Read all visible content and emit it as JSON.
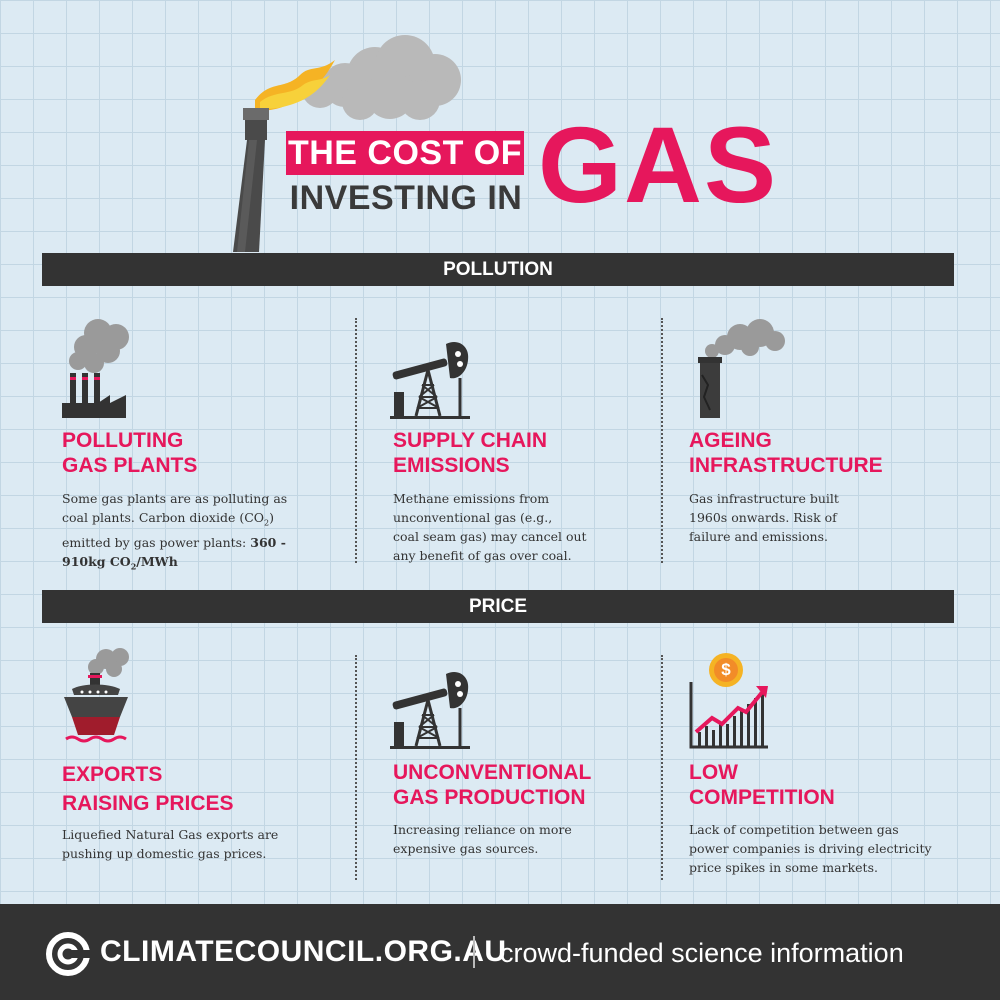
{
  "header": {
    "line1": "THE COST OF",
    "line2": "INVESTING IN",
    "big": "GAS"
  },
  "sections": {
    "pollution": "POLLUTION",
    "price": "PRICE"
  },
  "pollution_cards": [
    {
      "title1": "POLLUTING",
      "title2": "GAS PLANTS",
      "text_a": "Some gas plants are as polluting as",
      "text_b": "coal plants. Carbon dioxide (CO",
      "sub2": "2",
      "text_c": ")",
      "text_d": "emitted by gas power plants: ",
      "bold1": "360 -",
      "bold2": "910kg CO",
      "bold2_sub": "2",
      "bold3": "/MWh",
      "icon": "factory-icon"
    },
    {
      "title1": "SUPPLY CHAIN",
      "title2": "EMISSIONS",
      "text": [
        "Methane emissions from",
        "unconventional gas (e.g.,",
        "coal seam gas) may cancel out",
        "any benefit of gas over coal."
      ],
      "icon": "oil-pump-icon"
    },
    {
      "title1": "AGEING",
      "title2": "INFRASTRUCTURE",
      "text": [
        "Gas infrastructure built",
        "1960s onwards. Risk of",
        "failure and emissions."
      ],
      "icon": "chimney-icon"
    }
  ],
  "price_cards": [
    {
      "title1": "EXPORTS",
      "title2": "RAISING PRICES",
      "text": [
        "Liquefied Natural Gas exports are",
        "pushing up domestic gas prices."
      ],
      "icon": "ship-icon"
    },
    {
      "title1": "UNCONVENTIONAL",
      "title2": "GAS PRODUCTION",
      "text": [
        "Increasing reliance on more",
        "expensive gas sources."
      ],
      "icon": "oil-pump-icon"
    },
    {
      "title1": "LOW",
      "title2": "COMPETITION",
      "text": [
        "Lack of competition between gas",
        "power companies is driving electricity",
        "price spikes in some markets."
      ],
      "icon": "rising-chart-icon",
      "coin_symbol": "$"
    }
  ],
  "footer": {
    "logo": "CLIMATECOUNCIL.ORG.AU",
    "tagline": "crowd-funded science information"
  },
  "colors": {
    "accent": "#e6175c",
    "dark": "#333333",
    "background": "#dceaf3"
  }
}
